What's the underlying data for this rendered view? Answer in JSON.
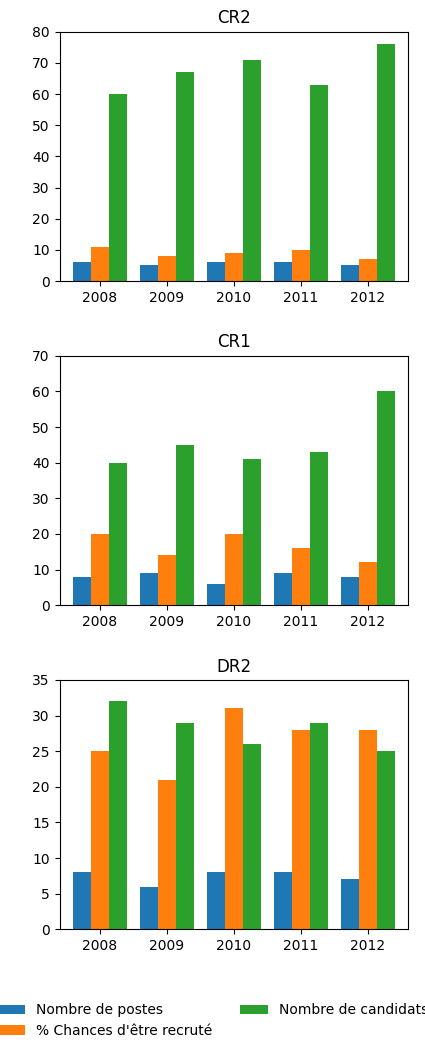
{
  "chart_data": [
    {
      "type": "bar",
      "title": "CR2",
      "categories": [
        "2008",
        "2009",
        "2010",
        "2011",
        "2012"
      ],
      "series": [
        {
          "name": "Nombre de postes",
          "values": [
            6,
            5,
            6,
            6,
            5
          ]
        },
        {
          "name": "% Chances d'être recruté",
          "values": [
            11,
            8,
            9,
            10,
            7
          ]
        },
        {
          "name": "Nombre de candidats",
          "values": [
            60,
            67,
            71,
            63,
            76
          ]
        }
      ],
      "ylim": [
        0,
        80
      ],
      "yticks": [
        0,
        10,
        20,
        30,
        40,
        50,
        60,
        70,
        80
      ],
      "grid": false
    },
    {
      "type": "bar",
      "title": "CR1",
      "categories": [
        "2008",
        "2009",
        "2010",
        "2011",
        "2012"
      ],
      "series": [
        {
          "name": "Nombre de postes",
          "values": [
            8,
            9,
            6,
            9,
            8
          ]
        },
        {
          "name": "% Chances d'être recruté",
          "values": [
            20,
            14,
            20,
            16,
            12
          ]
        },
        {
          "name": "Nombre de candidats",
          "values": [
            40,
            45,
            41,
            43,
            60
          ]
        }
      ],
      "ylim": [
        0,
        70
      ],
      "yticks": [
        0,
        10,
        20,
        30,
        40,
        50,
        60,
        70
      ],
      "grid": false
    },
    {
      "type": "bar",
      "title": "DR2",
      "categories": [
        "2008",
        "2009",
        "2010",
        "2011",
        "2012"
      ],
      "series": [
        {
          "name": "Nombre de postes",
          "values": [
            8,
            6,
            8,
            8,
            7
          ]
        },
        {
          "name": "% Chances d'être recruté",
          "values": [
            25,
            21,
            31,
            28,
            28
          ]
        },
        {
          "name": "Nombre de candidats",
          "values": [
            32,
            29,
            26,
            29,
            25
          ]
        }
      ],
      "ylim": [
        0,
        35
      ],
      "yticks": [
        0,
        5,
        10,
        15,
        20,
        25,
        30,
        35
      ],
      "grid": false,
      "legend": "lower center"
    }
  ]
}
